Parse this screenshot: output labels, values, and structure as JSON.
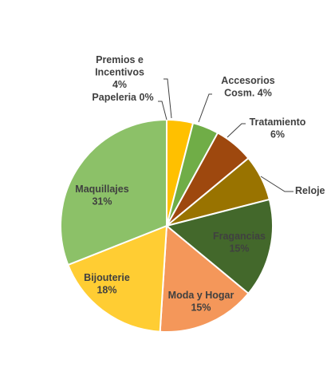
{
  "chart_data": {
    "type": "pie",
    "title": "",
    "start_angle_deg": 0,
    "direction": "clockwise",
    "slices": [
      {
        "name": "Premios e Incentivos",
        "value": 4,
        "label_lines": [
          "Premios e",
          "Incentivos",
          "4%"
        ],
        "color": "#FFC000",
        "label_placement": "outside-leader"
      },
      {
        "name": "Accesorios Cosm.",
        "value": 4,
        "label_lines": [
          "Accesorios",
          "Cosm. 4%"
        ],
        "color": "#70AD47",
        "label_placement": "outside-leader"
      },
      {
        "name": "Tratamiento",
        "value": 6,
        "label_lines": [
          "Tratamiento",
          "6%"
        ],
        "color": "#9E480E",
        "label_placement": "outside-leader"
      },
      {
        "name": "Reloje",
        "value": 7,
        "label_lines": [
          "Reloje"
        ],
        "color": "#997300",
        "label_placement": "outside-leader"
      },
      {
        "name": "Fragancias",
        "value": 15,
        "label_lines": [
          "Fragancias",
          "15%"
        ],
        "color": "#43682B",
        "label_placement": "inside"
      },
      {
        "name": "Moda y Hogar",
        "value": 15,
        "label_lines": [
          "Moda y Hogar",
          "15%"
        ],
        "color": "#F4975A",
        "label_placement": "inside"
      },
      {
        "name": "Bijouterie",
        "value": 18,
        "label_lines": [
          "Bijouterie",
          "18%"
        ],
        "color": "#FFCD33",
        "label_placement": "inside"
      },
      {
        "name": "Maquillajes",
        "value": 31,
        "label_lines": [
          "Maquillajes",
          "31%"
        ],
        "color": "#8CC168",
        "label_placement": "inside"
      },
      {
        "name": "Papeleria",
        "value": 0,
        "label_lines": [
          "Papeleria 0%"
        ],
        "color": "#5B9BD5",
        "label_placement": "outside-leader"
      }
    ]
  }
}
